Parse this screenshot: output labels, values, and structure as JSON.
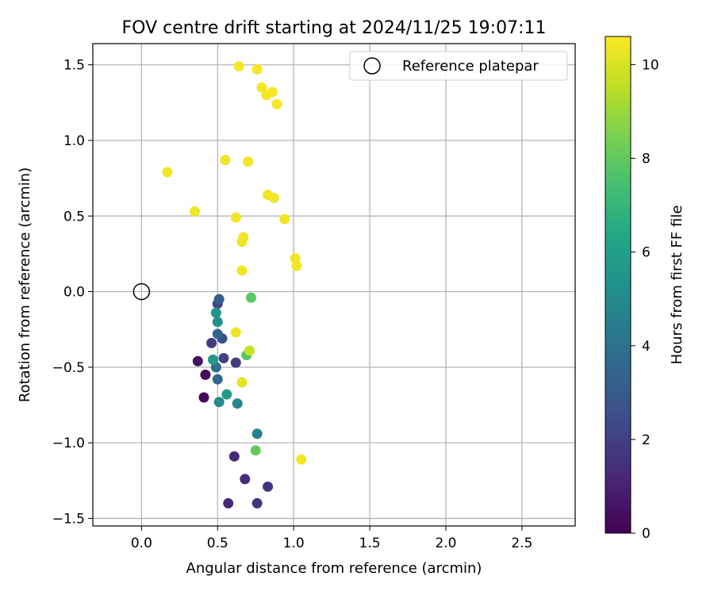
{
  "chart_data": {
    "type": "scatter",
    "title": "FOV centre drift starting at 2024/11/25 19:07:11",
    "xlabel": "Angular distance from reference (arcmin)",
    "ylabel": "Rotation from reference (arcmin)",
    "xlim": [
      -0.32,
      2.85
    ],
    "ylim": [
      -1.55,
      1.64
    ],
    "xticks": [
      0.0,
      0.5,
      1.0,
      1.5,
      2.0,
      2.5
    ],
    "yticks": [
      -1.5,
      -1.0,
      -0.5,
      0.0,
      0.5,
      1.0,
      1.5
    ],
    "xtick_labels": [
      "0.0",
      "0.5",
      "1.0",
      "1.5",
      "2.0",
      "2.5"
    ],
    "ytick_labels": [
      "−1.5",
      "−1.0",
      "−0.5",
      "0.0",
      "0.5",
      "1.0",
      "1.5"
    ],
    "grid": true,
    "legend": {
      "position": "top-right",
      "label": "Reference platepar"
    },
    "reference_point": {
      "x": 0.0,
      "y": 0.0
    },
    "colorbar": {
      "label": "Hours from first FF file",
      "range": [
        0,
        10.6
      ],
      "ticks": [
        0,
        2,
        4,
        6,
        8,
        10
      ],
      "tick_labels": [
        "0",
        "2",
        "4",
        "6",
        "8",
        "10"
      ],
      "colormap": "viridis"
    },
    "points": [
      {
        "x": 0.41,
        "y": -0.7,
        "h": 0.2
      },
      {
        "x": 0.42,
        "y": -0.55,
        "h": 0.3
      },
      {
        "x": 0.37,
        "y": -0.46,
        "h": 0.5
      },
      {
        "x": 0.57,
        "y": -1.4,
        "h": 1.2
      },
      {
        "x": 0.61,
        "y": -1.09,
        "h": 1.3
      },
      {
        "x": 0.68,
        "y": -1.24,
        "h": 1.4
      },
      {
        "x": 0.76,
        "y": -1.4,
        "h": 1.6
      },
      {
        "x": 0.83,
        "y": -1.29,
        "h": 1.6
      },
      {
        "x": 0.46,
        "y": -0.34,
        "h": 1.8
      },
      {
        "x": 0.62,
        "y": -0.47,
        "h": 1.9
      },
      {
        "x": 0.54,
        "y": -0.44,
        "h": 2.0
      },
      {
        "x": 0.5,
        "y": -0.08,
        "h": 2.1
      },
      {
        "x": 0.53,
        "y": -0.31,
        "h": 2.6
      },
      {
        "x": 0.51,
        "y": -0.05,
        "h": 3.2
      },
      {
        "x": 0.5,
        "y": -0.28,
        "h": 3.4
      },
      {
        "x": 0.5,
        "y": -0.58,
        "h": 3.6
      },
      {
        "x": 0.49,
        "y": -0.5,
        "h": 3.8
      },
      {
        "x": 0.76,
        "y": -0.94,
        "h": 4.6
      },
      {
        "x": 0.63,
        "y": -0.74,
        "h": 4.8
      },
      {
        "x": 0.51,
        "y": -0.73,
        "h": 5.0
      },
      {
        "x": 0.5,
        "y": -0.2,
        "h": 5.2
      },
      {
        "x": 0.49,
        "y": -0.14,
        "h": 5.5
      },
      {
        "x": 0.47,
        "y": -0.45,
        "h": 5.6
      },
      {
        "x": 0.56,
        "y": -0.68,
        "h": 5.9
      },
      {
        "x": 0.69,
        "y": -0.42,
        "h": 7.8
      },
      {
        "x": 0.72,
        "y": -0.04,
        "h": 7.9
      },
      {
        "x": 0.75,
        "y": -1.05,
        "h": 8.0
      },
      {
        "x": 0.71,
        "y": -0.39,
        "h": 9.7
      },
      {
        "x": 0.66,
        "y": -0.6,
        "h": 10.2
      },
      {
        "x": 0.62,
        "y": -0.27,
        "h": 10.3
      },
      {
        "x": 1.05,
        "y": -1.11,
        "h": 10.4
      },
      {
        "x": 0.66,
        "y": 0.14,
        "h": 10.4
      },
      {
        "x": 0.66,
        "y": 0.33,
        "h": 10.4
      },
      {
        "x": 0.67,
        "y": 0.36,
        "h": 10.4
      },
      {
        "x": 0.62,
        "y": 0.49,
        "h": 10.4
      },
      {
        "x": 0.94,
        "y": 0.48,
        "h": 10.4
      },
      {
        "x": 1.01,
        "y": 0.22,
        "h": 10.4
      },
      {
        "x": 1.02,
        "y": 0.17,
        "h": 10.4
      },
      {
        "x": 0.83,
        "y": 0.64,
        "h": 10.4
      },
      {
        "x": 0.87,
        "y": 0.62,
        "h": 10.4
      },
      {
        "x": 0.17,
        "y": 0.79,
        "h": 10.4
      },
      {
        "x": 0.35,
        "y": 0.53,
        "h": 10.4
      },
      {
        "x": 0.55,
        "y": 0.87,
        "h": 10.4
      },
      {
        "x": 0.7,
        "y": 0.86,
        "h": 10.4
      },
      {
        "x": 0.64,
        "y": 1.49,
        "h": 10.5
      },
      {
        "x": 0.76,
        "y": 1.47,
        "h": 10.5
      },
      {
        "x": 0.79,
        "y": 1.35,
        "h": 10.5
      },
      {
        "x": 0.86,
        "y": 1.32,
        "h": 10.5
      },
      {
        "x": 0.82,
        "y": 1.3,
        "h": 10.5
      },
      {
        "x": 0.89,
        "y": 1.24,
        "h": 10.5
      }
    ]
  }
}
